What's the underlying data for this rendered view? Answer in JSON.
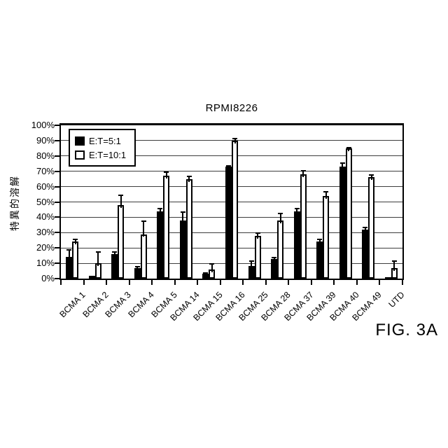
{
  "figure": {
    "label": "FIG. 3A"
  },
  "colors": {
    "ink": "#000000",
    "background": "#ffffff"
  },
  "chart_data": {
    "type": "bar",
    "title": "RPMI8226",
    "xlabel": "",
    "ylabel": "特異的溶解",
    "ylim": [
      0,
      100
    ],
    "ytick_step": 10,
    "ytick_suffix": "%",
    "grid": true,
    "legend_position": "top-left-inside",
    "categories": [
      "BCMA 1",
      "BCMA 2",
      "BCMA 3",
      "BCMA 4",
      "BCMA 5",
      "BCMA 14",
      "BCMA 15",
      "BCMA 16",
      "BCMA 25",
      "BCMA 28",
      "BCMA 37",
      "BCMA 39",
      "BCMA 40",
      "BCMA 49",
      "UTD"
    ],
    "series": [
      {
        "name": "E:T=5:1",
        "fill": "#000000",
        "values": [
          14,
          2,
          16,
          7,
          44,
          38,
          3,
          73,
          8,
          13,
          44,
          24,
          73,
          32,
          1
        ],
        "errors": [
          5,
          0,
          2,
          1,
          2,
          6,
          1,
          1,
          4,
          1,
          2,
          2,
          3,
          2,
          0
        ]
      },
      {
        "name": "E:T=10:1",
        "fill": "#ffffff",
        "values": [
          24,
          10,
          48,
          29,
          67,
          65,
          6,
          90,
          28,
          38,
          68,
          54,
          85,
          66,
          7
        ],
        "errors": [
          2,
          8,
          7,
          9,
          3,
          2,
          4,
          2,
          2,
          5,
          3,
          3,
          1,
          2,
          5
        ]
      }
    ]
  }
}
